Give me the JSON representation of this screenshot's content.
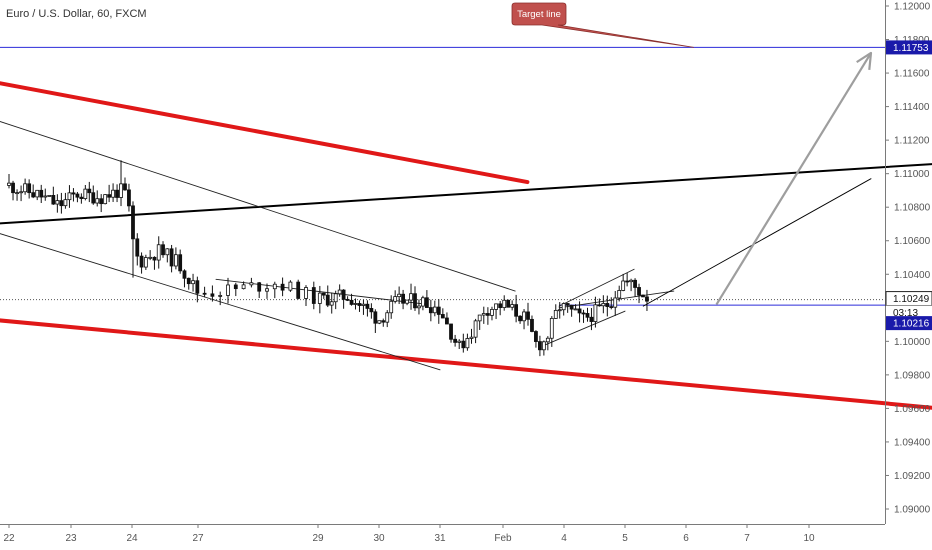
{
  "header": {
    "title": "Euro / U.S. Dollar, 60, FXCM"
  },
  "colors": {
    "background": "#ffffff",
    "candle": "#111111",
    "target_line": "#2b2bd9",
    "channel_red": "#e01818",
    "trend_black": "#000000",
    "projection_arrow": "#9e9e9e",
    "price_badge": "#1a1aaa",
    "callout": "#c0504d"
  },
  "callout": {
    "label": "Target line"
  },
  "price_axis": {
    "ticks": [
      "1.12000",
      "1.11800",
      "1.11600",
      "1.11400",
      "1.11200",
      "1.11000",
      "1.10800",
      "1.10600",
      "1.10400",
      "1.10200",
      "1.10000",
      "1.09800",
      "1.09600",
      "1.09400",
      "1.09200",
      "1.09000"
    ]
  },
  "price_badges": {
    "target": "1.11753",
    "current": "1.10249",
    "countdown": "03:13",
    "level": "1.10216"
  },
  "time_axis": {
    "labels": [
      "22",
      "23",
      "24",
      "27",
      "29",
      "30",
      "31",
      "Feb",
      "4",
      "5",
      "6",
      "7",
      "10"
    ]
  },
  "chart_data": {
    "type": "candlestick",
    "title": "Euro / U.S. Dollar, 60, FXCM",
    "symbol": "EURUSD",
    "timeframe": "60",
    "source": "FXCM",
    "ylim": [
      1.0895,
      1.1208
    ],
    "x_labels": [
      "22",
      "23",
      "24",
      "27",
      "29",
      "30",
      "31",
      "Feb",
      "4",
      "5",
      "6",
      "7",
      "10"
    ],
    "close_path": [
      {
        "t": 0,
        "p": 1.1093
      },
      {
        "t": 0.5,
        "p": 1.1087
      },
      {
        "t": 0.8,
        "p": 1.1081
      },
      {
        "t": 1.1,
        "p": 1.1088
      },
      {
        "t": 1.5,
        "p": 1.1086
      },
      {
        "t": 1.8,
        "p": 1.109
      },
      {
        "t": 1.92,
        "p": 1.1087
      },
      {
        "t": 2.0,
        "p": 1.1062
      },
      {
        "t": 2.1,
        "p": 1.1047
      },
      {
        "t": 2.4,
        "p": 1.1054
      },
      {
        "t": 2.7,
        "p": 1.1047
      },
      {
        "t": 3.0,
        "p": 1.1029
      },
      {
        "t": 3.3,
        "p": 1.1031
      },
      {
        "t": 3.65,
        "p": 1.1035
      },
      {
        "t": 4.0,
        "p": 1.1025
      },
      {
        "t": 4.5,
        "p": 1.1027
      },
      {
        "t": 5.0,
        "p": 1.1013
      },
      {
        "t": 5.3,
        "p": 1.1024
      },
      {
        "t": 5.7,
        "p": 1.1024
      },
      {
        "t": 6.0,
        "p": 1.1019
      },
      {
        "t": 6.3,
        "p": 1.0996
      },
      {
        "t": 6.5,
        "p": 1.1006
      },
      {
        "t": 6.7,
        "p": 1.1019
      },
      {
        "t": 7.0,
        "p": 1.1022
      },
      {
        "t": 7.35,
        "p": 1.1014
      },
      {
        "t": 7.55,
        "p": 1.0998
      },
      {
        "t": 7.7,
        "p": 1.1
      },
      {
        "t": 7.92,
        "p": 1.1021
      },
      {
        "t": 8.1,
        "p": 1.1018
      },
      {
        "t": 8.3,
        "p": 1.1013
      },
      {
        "t": 8.5,
        "p": 1.1017
      },
      {
        "t": 8.75,
        "p": 1.1023
      },
      {
        "t": 8.95,
        "p": 1.1036
      },
      {
        "t": 9.1,
        "p": 1.1034
      },
      {
        "t": 9.3,
        "p": 1.1028
      },
      {
        "t": 9.42,
        "p": 1.1025
      }
    ],
    "horizontal_levels": [
      {
        "name": "Target line",
        "price": 1.11753
      },
      {
        "name": "last price",
        "price": 1.10249
      },
      {
        "name": "level",
        "price": 1.10216
      }
    ],
    "trendlines": [
      {
        "role": "upper red channel",
        "from": {
          "t": -0.3,
          "p": 1.1155
        },
        "to": {
          "t": 7.4,
          "p": 1.1095
        }
      },
      {
        "role": "lower red channel",
        "from": {
          "t": -0.3,
          "p": 1.1013
        },
        "to": {
          "t": 14.1,
          "p": 1.096
        }
      },
      {
        "role": "black long-term trendline",
        "from": {
          "t": -0.3,
          "p": 1.107
        },
        "to": {
          "t": 14.1,
          "p": 1.1106
        }
      },
      {
        "role": "descending channel top",
        "from": {
          "t": -0.3,
          "p": 1.1133
        },
        "to": {
          "t": 7.2,
          "p": 1.103
        }
      },
      {
        "role": "descending channel bottom",
        "from": {
          "t": -0.3,
          "p": 1.1066
        },
        "to": {
          "t": 6.0,
          "p": 1.0983
        }
      },
      {
        "role": "flag top",
        "from": {
          "t": 3.15,
          "p": 1.1037
        },
        "to": {
          "t": 5.8,
          "p": 1.1022
        }
      },
      {
        "role": "triangle upper",
        "from": {
          "t": 7.92,
          "p": 1.1021
        },
        "to": {
          "t": 9.15,
          "p": 1.1043
        }
      },
      {
        "role": "triangle lower",
        "from": {
          "t": 7.7,
          "p": 1.0998
        },
        "to": {
          "t": 9.0,
          "p": 1.1018
        }
      },
      {
        "role": "wedge apex line",
        "from": {
          "t": 7.92,
          "p": 1.102
        },
        "to": {
          "t": 9.8,
          "p": 1.103
        }
      },
      {
        "role": "breakout projection",
        "from": {
          "t": 9.3,
          "p": 1.1021
        },
        "to": {
          "t": 13.0,
          "p": 1.1097
        }
      }
    ],
    "projection_arrow": {
      "from": {
        "t": 10.5,
        "p": 1.1022
      },
      "to": {
        "t": 13.0,
        "p": 1.1172
      }
    },
    "last_price": 1.10249,
    "target_price": 1.11753
  }
}
